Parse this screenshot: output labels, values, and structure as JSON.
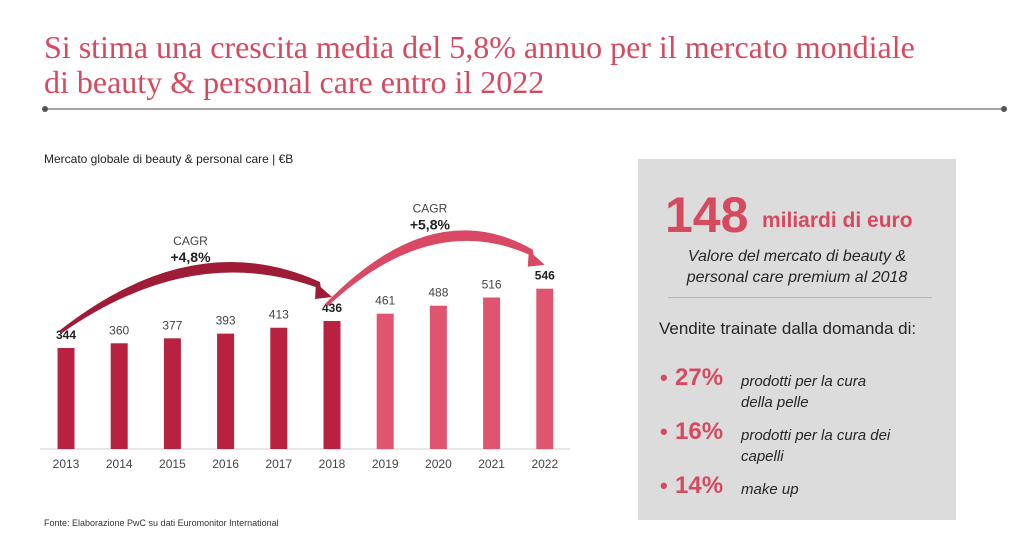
{
  "title": {
    "line1": "Si stima una crescita media del 5,8% annuo per il mercato mondiale",
    "line2": "di beauty & personal care entro il 2022"
  },
  "chart_label": "Mercato globale di beauty & personal care | €B",
  "source": "Fonte: Elaborazione PwC su dati Euromonitor International",
  "chart_data": {
    "type": "bar",
    "title": "Mercato globale di beauty & personal care | €B",
    "categories": [
      "2013",
      "2014",
      "2015",
      "2016",
      "2017",
      "2018",
      "2019",
      "2020",
      "2021",
      "2022"
    ],
    "values": [
      344,
      360,
      377,
      393,
      413,
      436,
      461,
      488,
      516,
      546
    ],
    "value_labels": [
      "344",
      "360",
      "377",
      "393",
      "413",
      "436",
      "461",
      "488",
      "516",
      "546"
    ],
    "bold_labels": [
      true,
      false,
      false,
      false,
      false,
      true,
      false,
      false,
      false,
      true
    ],
    "phases": [
      "historical",
      "historical",
      "historical",
      "historical",
      "historical",
      "historical",
      "forecast",
      "forecast",
      "forecast",
      "forecast"
    ],
    "colors": {
      "historical": "#b8213f",
      "forecast": "#df5570",
      "arrow_historical": "#9e1c35",
      "arrow_forecast": "#d94964"
    },
    "ylim": [
      0,
      640
    ],
    "grid": false,
    "annotations": [
      {
        "text": "CAGR",
        "value": "+4,8%",
        "from": "2013",
        "to": "2018"
      },
      {
        "text": "CAGR",
        "value": "+5,8%",
        "from": "2018",
        "to": "2022"
      }
    ]
  },
  "panel": {
    "big_number": "148",
    "big_unit": "miliardi di euro",
    "description": "Valore del mercato di beauty & personal care premium al 2018",
    "drivers_label": "Vendite trainate dalla domanda di:",
    "items": [
      {
        "bullet": "•",
        "pct": "27%",
        "label": "prodotti per la cura della pelle"
      },
      {
        "bullet": "•",
        "pct": "16%",
        "label": "prodotti per la cura dei capelli"
      },
      {
        "bullet": "•",
        "pct": "14%",
        "label": "make up"
      }
    ]
  }
}
